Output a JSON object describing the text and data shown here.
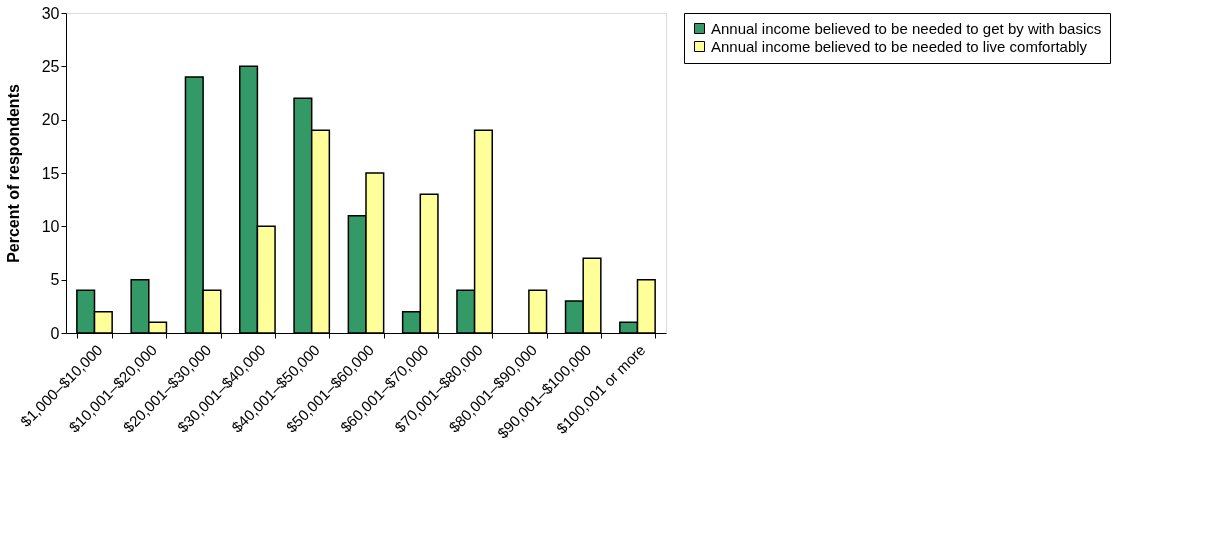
{
  "chart_data": {
    "type": "bar",
    "ylabel": "Percent of respondents",
    "categories": [
      "$1,000–$10,000",
      "$10,001–$20,000",
      "$20,001–$30,000",
      "$30,001–$40,000",
      "$40,001–$50,000",
      "$50,001–$60,000",
      "$60,001–$70,000",
      "$70,001–$80,000",
      "$80,001–$90,000",
      "$90,001–$100,000",
      "$100,001 or more"
    ],
    "series": [
      {
        "name": "Annual income believed to be needed to get by with basics",
        "color": "#339966",
        "values": [
          4,
          5,
          24,
          25,
          22,
          11,
          2,
          4,
          null,
          3,
          1
        ]
      },
      {
        "name": "Annual income believed to be needed to live comfortably",
        "color": "#ffff99",
        "values": [
          2,
          1,
          4,
          10,
          19,
          15,
          13,
          19,
          4,
          7,
          5
        ]
      }
    ],
    "ylim": [
      0,
      30
    ],
    "yticks": [
      0,
      5,
      10,
      15,
      20,
      25,
      30
    ],
    "grid": false,
    "legend": "right"
  }
}
